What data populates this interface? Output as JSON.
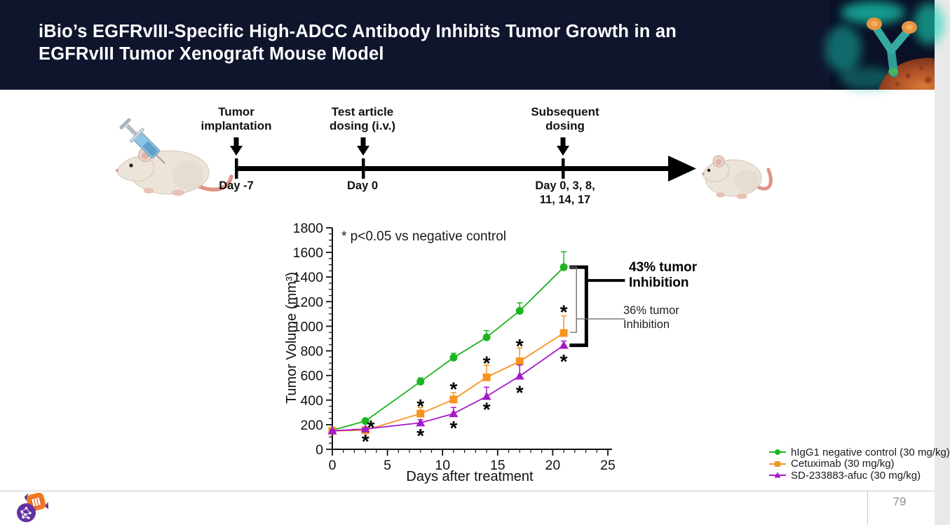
{
  "slide": {
    "title": "iBio’s EGFRvIII-Specific High-ADCC Antibody Inhibits Tumor Growth in an\nEGFRvIII Tumor Xenograft Mouse Model",
    "page_number": "79"
  },
  "colors": {
    "header_bg": "#10152e",
    "green": "#1eb41e",
    "orange": "#f7941e",
    "purple": "#a51ac8",
    "axis": "#111111",
    "footer_line": "#c9c9c9",
    "page_number_text": "#8f8f8f"
  },
  "timeline": {
    "events": [
      {
        "title": "Tumor\nimplantation",
        "day": "Day -7"
      },
      {
        "title": "Test article\ndosing (i.v.)",
        "day": "Day 0"
      },
      {
        "title": "Subsequent\ndosing",
        "day": "Day 0, 3, 8,\n11, 14, 17"
      }
    ]
  },
  "chart_data": {
    "type": "line",
    "xlabel": "Days after treatment",
    "ylabel": "Tumor Volume (mm³)",
    "xlim": [
      0,
      25
    ],
    "ylim": [
      0,
      1800
    ],
    "xticks": [
      0,
      5,
      10,
      15,
      20,
      25
    ],
    "yticks": [
      0,
      200,
      400,
      600,
      800,
      1000,
      1200,
      1400,
      1600,
      1800
    ],
    "x_minor_step": 1,
    "y_minor_step": 50,
    "significance_note": "* p<0.05 vs negative control",
    "x": [
      0,
      3,
      8,
      11,
      14,
      17,
      21
    ],
    "series": [
      {
        "name": "hIgG1 negative control (30 mg/kg)",
        "color": "#1eb41e",
        "marker": "circle",
        "values": [
          155,
          230,
          550,
          745,
          910,
          1125,
          1480
        ],
        "err_up": [
          12,
          15,
          30,
          35,
          55,
          65,
          125
        ],
        "stars": []
      },
      {
        "name": "Cetuximab (30 mg/kg)",
        "color": "#f7941e",
        "marker": "square",
        "values": [
          150,
          155,
          290,
          405,
          585,
          715,
          945
        ],
        "err_up": [
          8,
          10,
          50,
          55,
          100,
          110,
          140
        ],
        "stars": [
          [
            3,
            85
          ],
          [
            8,
            370
          ],
          [
            11,
            510
          ],
          [
            14,
            720
          ],
          [
            17,
            860
          ],
          [
            21,
            1135
          ]
        ]
      },
      {
        "name": "SD-233883-afuc (30 mg/kg)",
        "color": "#a51ac8",
        "marker": "triangle",
        "values": [
          150,
          165,
          215,
          290,
          430,
          595,
          845
        ],
        "err_up": [
          8,
          10,
          25,
          50,
          75,
          90,
          35
        ],
        "stars": [
          [
            3.5,
            200
          ],
          [
            8,
            130
          ],
          [
            11,
            195
          ],
          [
            14,
            345
          ],
          [
            17,
            480
          ],
          [
            21,
            735
          ]
        ]
      }
    ],
    "comparisons": [
      {
        "label": "43% tumor\nInhibition",
        "bold": true,
        "bracket_day": 23.05,
        "y_top": 1480,
        "y_bottom": 845,
        "line_y": 1372,
        "line_to_day": 26.55,
        "thick": true
      },
      {
        "label": "36% tumor\nInhibition",
        "bold": false,
        "bracket_day": 22.15,
        "y_top": 1480,
        "y_bottom": 950,
        "line_y": 1060,
        "line_to_day": 26.55,
        "thick": false
      }
    ]
  }
}
